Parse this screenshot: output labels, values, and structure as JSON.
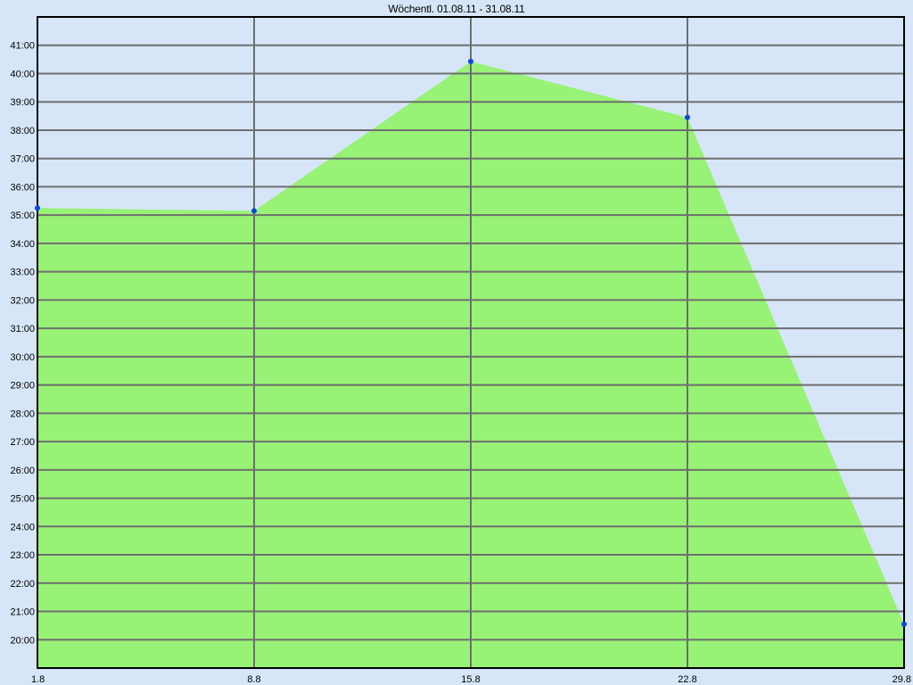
{
  "chart_data": {
    "type": "area",
    "title": "Wöchentl. 01.08.11 - 31.08.11",
    "xlabel": "",
    "ylabel": "",
    "categories": [
      "1.8",
      "8.8",
      "15.8",
      "22.8",
      "29.8"
    ],
    "y_unit": "mm:ss",
    "ylim": [
      19.0,
      42.0
    ],
    "yticks": [
      20,
      21,
      22,
      23,
      24,
      25,
      26,
      27,
      28,
      29,
      30,
      31,
      32,
      33,
      34,
      35,
      36,
      37,
      38,
      39,
      40,
      41
    ],
    "ytick_labels": [
      "20:00",
      "21:00",
      "22:00",
      "23:00",
      "24:00",
      "25:00",
      "26:00",
      "27:00",
      "28:00",
      "29:00",
      "30:00",
      "31:00",
      "32:00",
      "33:00",
      "34:00",
      "35:00",
      "36:00",
      "37:00",
      "38:00",
      "39:00",
      "40:00",
      "41:00"
    ],
    "series": [
      {
        "values": [
          35.25,
          35.15,
          40.43,
          38.45,
          20.55
        ]
      }
    ],
    "grid": true,
    "legend": "none"
  },
  "colors": {
    "background": "#d6e6f8",
    "area_fill": "#98f276",
    "point": "#0a46e6",
    "grid": "#6e6e6e",
    "axis": "#000000"
  }
}
